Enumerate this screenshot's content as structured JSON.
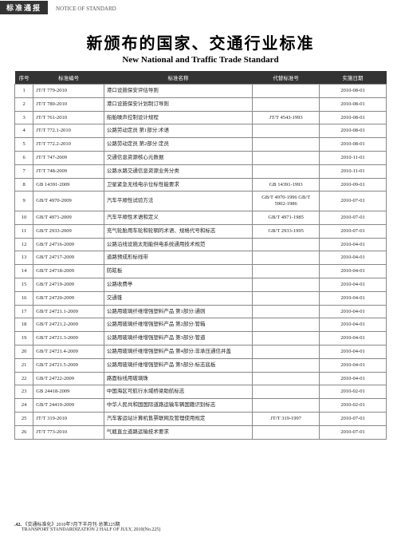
{
  "header": {
    "tag": "标准通报",
    "sub": "NOTICE OF STANDARD"
  },
  "title": {
    "cn": "新颁布的国家、交通行业标准",
    "en": "New National and Traffic Trade Standard"
  },
  "columns": {
    "seq": "序号",
    "code": "标准编号",
    "name": "标准名称",
    "replace": "代替标准号",
    "date": "实施日期"
  },
  "rows": [
    {
      "seq": "1",
      "code": "JT/T 779-2010",
      "name": "港口设施保安评估导则",
      "replace": "",
      "date": "2010-08-01"
    },
    {
      "seq": "2",
      "code": "JT/T 780-2010",
      "name": "港口设施保安计划制订导则",
      "replace": "",
      "date": "2010-08-01"
    },
    {
      "seq": "3",
      "code": "JT/T 761-2010",
      "name": "船舶噪声控制设计规程",
      "replace": "JT/T 4543-1993",
      "date": "2010-08-01"
    },
    {
      "seq": "4",
      "code": "JT/T 772.1-2010",
      "name": "公路劳动定员 第1部分:术语",
      "replace": "",
      "date": "2010-08-01"
    },
    {
      "seq": "5",
      "code": "JT/T 772.2-2010",
      "name": "公路劳动定员 第2部分:定员",
      "replace": "",
      "date": "2010-08-01"
    },
    {
      "seq": "6",
      "code": "JT/T 747-2009",
      "name": "交通信息资源核心元数据",
      "replace": "",
      "date": "2010-11-01"
    },
    {
      "seq": "7",
      "code": "JT/T 748-2009",
      "name": "公路水路交通信息资源业务分类",
      "replace": "",
      "date": "2010-11-01"
    },
    {
      "seq": "8",
      "code": "GB 14391-2009",
      "name": "卫星紧急无线电示位标性能要求",
      "replace": "GB 14391-1993",
      "date": "2010-09-01"
    },
    {
      "seq": "9",
      "code": "GB/T 4970-2009",
      "name": "汽车平顺性试验方法",
      "replace": "GB/T 4970-1996 GB/T 5902-1986",
      "date": "2010-07-01"
    },
    {
      "seq": "10",
      "code": "GB/T 4971-2009",
      "name": "汽车平顺性术语和定义",
      "replace": "GB/T 4971-1985",
      "date": "2010-07-01"
    },
    {
      "seq": "11",
      "code": "GB/T 2933-2009",
      "name": "充气轮胎用车轮和轮辋的术语、规格代号和标志",
      "replace": "GB/T 2933-1995",
      "date": "2010-07-01"
    },
    {
      "seq": "12",
      "code": "GB/T 24716-2009",
      "name": "公路沿线设施太阳能供电系统通用技术规范",
      "replace": "",
      "date": "2010-04-01"
    },
    {
      "seq": "13",
      "code": "GB/T 24717-2009",
      "name": "道路预成形标线带",
      "replace": "",
      "date": "2010-04-01"
    },
    {
      "seq": "14",
      "code": "GB/T 24718-2009",
      "name": "防眩板",
      "replace": "",
      "date": "2010-04-01"
    },
    {
      "seq": "15",
      "code": "GB/T 24719-2009",
      "name": "公路收费亭",
      "replace": "",
      "date": "2010-04-01"
    },
    {
      "seq": "16",
      "code": "GB/T 24720-2009",
      "name": "交通锥",
      "replace": "",
      "date": "2010-04-01"
    },
    {
      "seq": "17",
      "code": "GB/T 24721.1-2009",
      "name": "公路用玻璃纤维增强塑料产品 第1部分:通则",
      "replace": "",
      "date": "2010-04-01"
    },
    {
      "seq": "18",
      "code": "GB/T 24721.2-2009",
      "name": "公路用玻璃纤维增强塑料产品 第2部分:管箱",
      "replace": "",
      "date": "2010-04-01"
    },
    {
      "seq": "19",
      "code": "GB/T 24721.3-2009",
      "name": "公路用玻璃纤维增强塑料产品 第3部分:管道",
      "replace": "",
      "date": "2010-04-01"
    },
    {
      "seq": "20",
      "code": "GB/T 24721.4-2009",
      "name": "公路用玻璃纤维增强塑料产品 第4部分:非承压通信井盖",
      "replace": "",
      "date": "2010-04-01"
    },
    {
      "seq": "21",
      "code": "GB/T 24721.5-2009",
      "name": "公路用玻璃纤维增强塑料产品 第5部分:标志底板",
      "replace": "",
      "date": "2010-04-01"
    },
    {
      "seq": "22",
      "code": "GB/T 24722-2009",
      "name": "路面标线用玻璃珠",
      "replace": "",
      "date": "2010-04-01"
    },
    {
      "seq": "23",
      "code": "GB 24418-2009",
      "name": "中国海区可航行水域桥梁助航标志",
      "replace": "",
      "date": "2010-02-01"
    },
    {
      "seq": "24",
      "code": "GB/T 24419-2009",
      "name": "中华人民共和国国际道路运输车辆国籍识别标志",
      "replace": "",
      "date": "2010-02-01"
    },
    {
      "seq": "25",
      "code": "JT/T 319-2010",
      "name": "汽车客运站计算机售票联网及管理使用规定",
      "replace": "JT/T 319-1997",
      "date": "2010-07-01"
    },
    {
      "seq": "26",
      "code": "JT/T 773-2010",
      "name": "气瓶直立道路运输技术要求",
      "replace": "",
      "date": "2010-07-01"
    }
  ],
  "footer": {
    "page": ".42.",
    "line1": "《交通标准化》2010年7月下半月刊·总第225期",
    "line2": "TRANSPORT STANDARDIZATION 2 HALF OF JULY, 2010(No.225)"
  }
}
